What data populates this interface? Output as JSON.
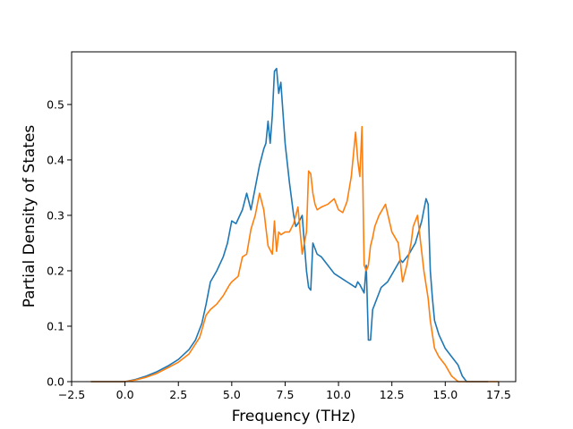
{
  "chart_data": {
    "type": "line",
    "title": "",
    "xlabel": "Frequency (THz)",
    "ylabel": "Partial Density of States",
    "xlim": [
      -2.5,
      18.3
    ],
    "ylim": [
      0.0,
      0.595
    ],
    "xticks": [
      -2.5,
      0.0,
      2.5,
      5.0,
      7.5,
      10.0,
      12.5,
      15.0,
      17.5
    ],
    "xtick_labels": [
      "−2.5",
      "0.0",
      "2.5",
      "5.0",
      "7.5",
      "10.0",
      "12.5",
      "15.0",
      "17.5"
    ],
    "yticks": [
      0.0,
      0.1,
      0.2,
      0.3,
      0.4,
      0.5
    ],
    "ytick_labels": [
      "0.0",
      "0.1",
      "0.2",
      "0.3",
      "0.4",
      "0.5"
    ],
    "grid": false,
    "legend": "none",
    "series": [
      {
        "color": "#1f77b4",
        "x": [
          -1.6,
          -0.5,
          0.0,
          0.5,
          1.0,
          1.5,
          2.0,
          2.5,
          3.0,
          3.3,
          3.6,
          3.8,
          4.0,
          4.3,
          4.6,
          4.8,
          5.0,
          5.2,
          5.5,
          5.7,
          5.9,
          6.1,
          6.3,
          6.5,
          6.6,
          6.7,
          6.8,
          6.9,
          7.0,
          7.1,
          7.2,
          7.3,
          7.5,
          7.7,
          7.9,
          8.0,
          8.1,
          8.3,
          8.5,
          8.6,
          8.7,
          8.8,
          9.0,
          9.2,
          9.5,
          9.8,
          10.0,
          10.2,
          10.4,
          10.6,
          10.8,
          10.9,
          11.0,
          11.2,
          11.3,
          11.4,
          11.5,
          11.6,
          11.7,
          11.9,
          12.0,
          12.3,
          12.6,
          12.9,
          13.0,
          13.3,
          13.6,
          13.9,
          14.0,
          14.1,
          14.2,
          14.3,
          14.4,
          14.5,
          14.7,
          15.0,
          15.3,
          15.6,
          15.8,
          16.0,
          17.0
        ],
        "values": [
          0.0,
          0.0,
          0.0,
          0.004,
          0.01,
          0.018,
          0.028,
          0.04,
          0.058,
          0.075,
          0.105,
          0.14,
          0.18,
          0.2,
          0.225,
          0.25,
          0.29,
          0.285,
          0.31,
          0.34,
          0.31,
          0.35,
          0.39,
          0.42,
          0.43,
          0.47,
          0.43,
          0.48,
          0.56,
          0.565,
          0.52,
          0.54,
          0.43,
          0.36,
          0.3,
          0.28,
          0.285,
          0.3,
          0.2,
          0.17,
          0.165,
          0.25,
          0.23,
          0.225,
          0.21,
          0.195,
          0.19,
          0.185,
          0.18,
          0.175,
          0.17,
          0.18,
          0.175,
          0.16,
          0.21,
          0.075,
          0.075,
          0.13,
          0.14,
          0.16,
          0.17,
          0.18,
          0.2,
          0.22,
          0.215,
          0.23,
          0.25,
          0.29,
          0.31,
          0.33,
          0.32,
          0.2,
          0.15,
          0.11,
          0.085,
          0.06,
          0.045,
          0.03,
          0.01,
          0.0,
          0.0
        ]
      },
      {
        "color": "#ff7f0e",
        "x": [
          -1.6,
          -0.5,
          0.0,
          0.5,
          1.0,
          1.5,
          2.0,
          2.5,
          3.0,
          3.5,
          3.8,
          4.0,
          4.3,
          4.6,
          4.9,
          5.0,
          5.3,
          5.5,
          5.7,
          5.9,
          6.1,
          6.3,
          6.5,
          6.7,
          6.9,
          7.0,
          7.1,
          7.2,
          7.3,
          7.5,
          7.7,
          7.9,
          8.1,
          8.3,
          8.5,
          8.6,
          8.7,
          8.8,
          8.9,
          9.0,
          9.2,
          9.5,
          9.8,
          10.0,
          10.2,
          10.4,
          10.6,
          10.8,
          10.9,
          11.0,
          11.1,
          11.2,
          11.3,
          11.4,
          11.5,
          11.6,
          11.7,
          11.9,
          12.2,
          12.5,
          12.8,
          13.0,
          13.2,
          13.4,
          13.5,
          13.7,
          14.0,
          14.2,
          14.3,
          14.4,
          14.5,
          14.7,
          15.0,
          15.3,
          15.6,
          15.8,
          16.0,
          17.5
        ],
        "values": [
          0.0,
          0.0,
          0.0,
          0.003,
          0.008,
          0.015,
          0.025,
          0.035,
          0.05,
          0.08,
          0.12,
          0.13,
          0.14,
          0.155,
          0.175,
          0.18,
          0.19,
          0.225,
          0.23,
          0.275,
          0.3,
          0.34,
          0.31,
          0.245,
          0.23,
          0.29,
          0.235,
          0.27,
          0.265,
          0.27,
          0.27,
          0.285,
          0.315,
          0.23,
          0.27,
          0.38,
          0.375,
          0.34,
          0.32,
          0.31,
          0.315,
          0.32,
          0.33,
          0.31,
          0.305,
          0.325,
          0.37,
          0.45,
          0.4,
          0.37,
          0.46,
          0.21,
          0.2,
          0.21,
          0.245,
          0.26,
          0.28,
          0.3,
          0.32,
          0.27,
          0.25,
          0.18,
          0.21,
          0.25,
          0.28,
          0.3,
          0.2,
          0.15,
          0.11,
          0.085,
          0.06,
          0.045,
          0.03,
          0.01,
          0.0,
          0.0,
          0.0,
          0.0
        ]
      }
    ]
  }
}
